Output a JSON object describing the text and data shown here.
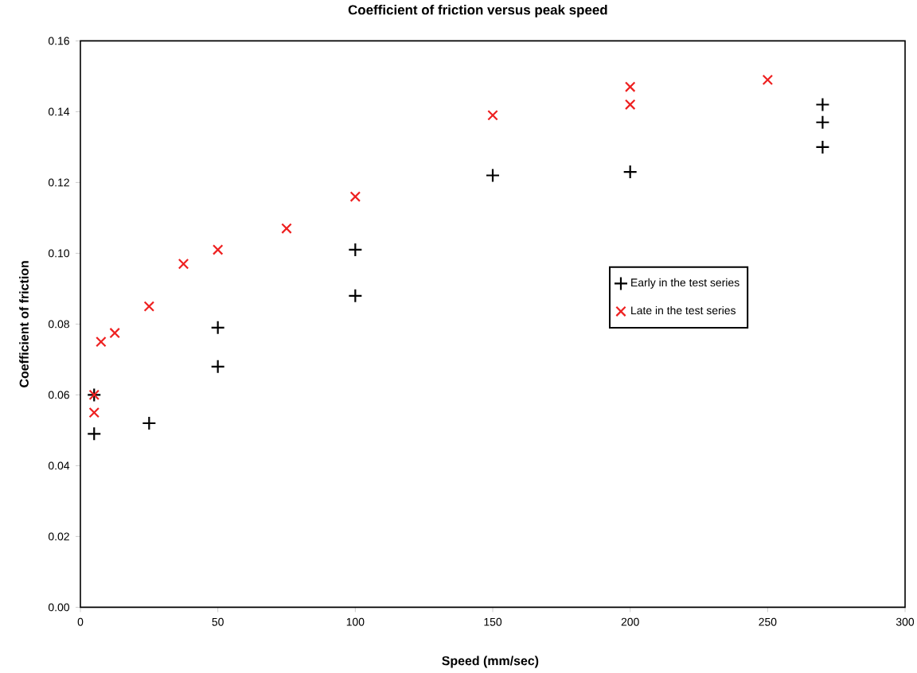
{
  "chart_data": {
    "type": "scatter",
    "title": "Coefficient of friction versus peak speed",
    "xlabel": "Speed (mm/sec)",
    "ylabel": "Coefficient of friction",
    "xlim": [
      0,
      300
    ],
    "xticks": [
      0,
      50,
      100,
      150,
      200,
      250,
      300
    ],
    "ylim": [
      0,
      0.16
    ],
    "yticks": [
      {
        "value": 0,
        "label": "0.00"
      },
      {
        "value": 0.02,
        "label": "0.02"
      },
      {
        "value": 0.04,
        "label": "0.04"
      },
      {
        "value": 0.06,
        "label": "0.06"
      },
      {
        "value": 0.08,
        "label": "0.08"
      },
      {
        "value": 0.1,
        "label": "0.10"
      },
      {
        "value": 0.12,
        "label": "0.12"
      },
      {
        "value": 0.14,
        "label": "0.14"
      },
      {
        "value": 0.16,
        "label": "0.16"
      }
    ],
    "legend": "right",
    "series": [
      {
        "name": "Early in the test series",
        "color": "#000000",
        "marker": "plus",
        "x": [
          5,
          5,
          25,
          50,
          50,
          100,
          100,
          150,
          200,
          270,
          270,
          270
        ],
        "values": [
          0.049,
          0.06,
          0.052,
          0.079,
          0.068,
          0.101,
          0.088,
          0.122,
          0.123,
          0.142,
          0.137,
          0.13
        ]
      },
      {
        "name": "Late in the test series",
        "color": "#ee2020",
        "marker": "cross",
        "x": [
          5,
          5,
          7.5,
          12.5,
          25,
          37.5,
          50,
          75,
          100,
          150,
          200,
          200,
          250
        ],
        "values": [
          0.06,
          0.055,
          0.075,
          0.0775,
          0.085,
          0.097,
          0.101,
          0.107,
          0.116,
          0.139,
          0.147,
          0.142,
          0.149
        ]
      }
    ]
  }
}
